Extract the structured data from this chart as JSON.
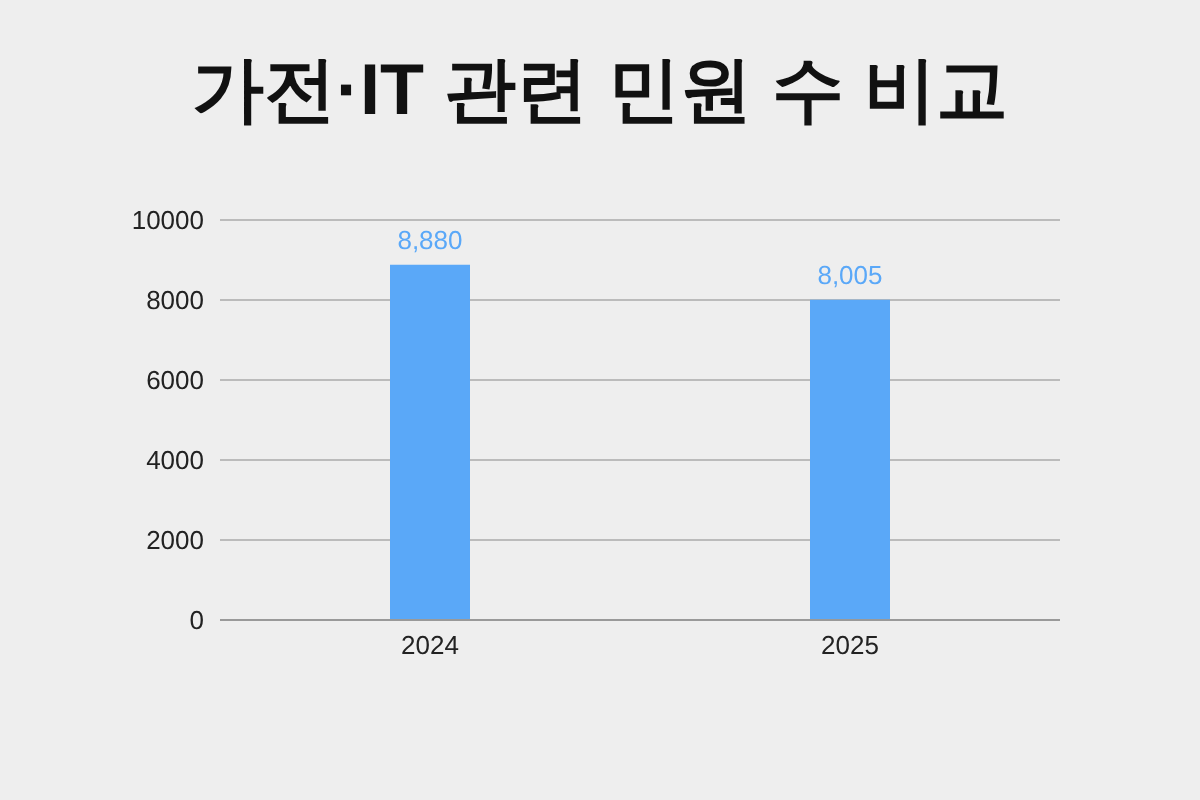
{
  "chart_data": {
    "type": "bar",
    "title": "가전·IT 관련 민원 수 비교",
    "categories": [
      "2024",
      "2025"
    ],
    "series": [
      {
        "color": "#5aa8f8",
        "values": [
          8880,
          8005
        ],
        "value_labels": [
          "8,880",
          "8,005"
        ]
      }
    ],
    "ylim": [
      0,
      10000
    ],
    "yticks": [
      0,
      2000,
      4000,
      6000,
      8000,
      10000
    ],
    "grid": "y"
  }
}
